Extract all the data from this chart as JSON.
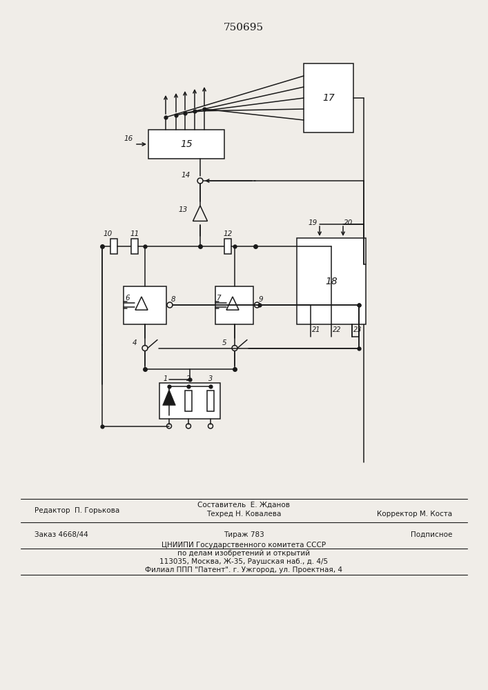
{
  "title": "750695",
  "bg_color": "#f0ede8",
  "line_color": "#1a1a1a",
  "lw": 1.1,
  "footer": {
    "line1_left": "Редактор  П. Горькова",
    "line1_mid": "Составитель  Е. Жданов",
    "line2_mid": "Техред Н. Ковалева",
    "line2_right": "Корректор М. Коста",
    "line3_left": "Заказ 4668/44",
    "line3_mid": "Тираж 783",
    "line3_right": "Подписное",
    "line4": "ЦНИИПИ Государственного комитета СССР",
    "line5": "по делам изобретений и открытий",
    "line6": "113035, Москва, Ж-35, Раушская наб., д. 4/5",
    "line7": "Филиал ППП \"Патент\". г. Ужгород, ул. Проектная, 4"
  }
}
